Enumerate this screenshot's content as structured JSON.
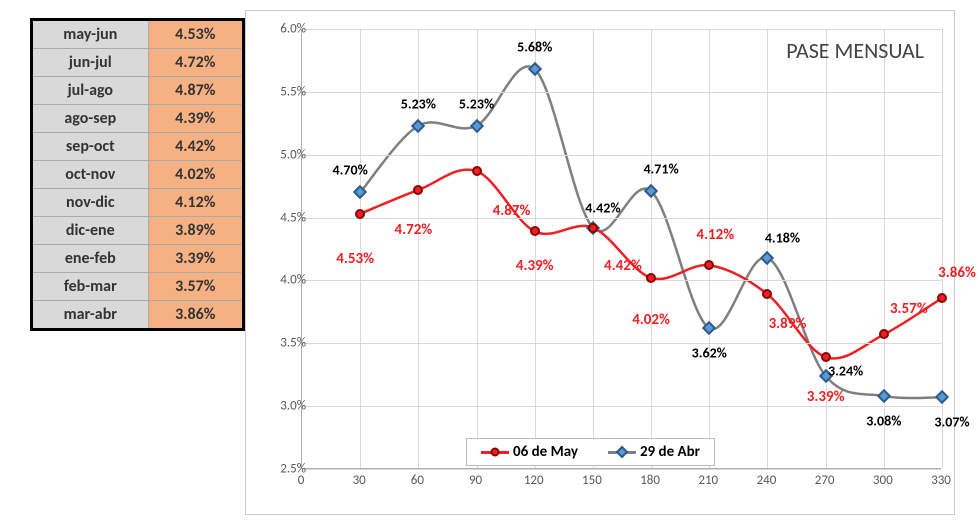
{
  "table": {
    "rows": [
      {
        "label": "may-jun",
        "value": "4.53%"
      },
      {
        "label": "jun-jul",
        "value": "4.72%"
      },
      {
        "label": "jul-ago",
        "value": "4.87%"
      },
      {
        "label": "ago-sep",
        "value": "4.39%"
      },
      {
        "label": "sep-oct",
        "value": "4.42%"
      },
      {
        "label": "oct-nov",
        "value": "4.02%"
      },
      {
        "label": "nov-dic",
        "value": "4.12%"
      },
      {
        "label": "dic-ene",
        "value": "3.89%"
      },
      {
        "label": "ene-feb",
        "value": "3.39%"
      },
      {
        "label": "feb-mar",
        "value": "3.57%"
      },
      {
        "label": "mar-abr",
        "value": "3.86%"
      }
    ],
    "label_bg": "#d9d9d9",
    "value_bg": "#f5b183"
  },
  "chart": {
    "type": "line",
    "title": "PASE MENSUAL",
    "title_fontsize": 22,
    "background_color": "#ffffff",
    "grid_color": "#d9d9d9",
    "line_width": 2.5,
    "marker_size": 10,
    "ylim": [
      2.5,
      6.0
    ],
    "ytick_step": 0.5,
    "ytick_format": "pct1",
    "xlim": [
      0,
      330
    ],
    "xtick_step": 30,
    "series": [
      {
        "name": "06 de May",
        "color": "#ed2024",
        "marker_fill": "#ed2024",
        "marker_border": "#8b0000",
        "marker": "circle",
        "x": [
          30,
          60,
          90,
          120,
          150,
          180,
          210,
          240,
          270,
          300,
          330
        ],
        "y": [
          4.53,
          4.72,
          4.87,
          4.39,
          4.42,
          4.02,
          4.12,
          3.89,
          3.39,
          3.57,
          3.86
        ],
        "labels": [
          "4.53%",
          "4.72%",
          "4.87%",
          "4.39%",
          "4.42%",
          "4.02%",
          "4.12%",
          "3.89%",
          "3.39%",
          "3.57%",
          "3.86%"
        ],
        "label_color": "#ed2024",
        "label_fontsize": 15,
        "label_pos": [
          {
            "dx": -5,
            "dy": 45
          },
          {
            "dx": -5,
            "dy": 40
          },
          {
            "dx": 35,
            "dy": 40
          },
          {
            "dx": 0,
            "dy": 35
          },
          {
            "dx": 30,
            "dy": 38
          },
          {
            "dx": 0,
            "dy": 42
          },
          {
            "dx": 6,
            "dy": -30
          },
          {
            "dx": 20,
            "dy": 30
          },
          {
            "dx": 0,
            "dy": 40
          },
          {
            "dx": 25,
            "dy": -25
          },
          {
            "dx": 15,
            "dy": -25
          }
        ]
      },
      {
        "name": "29 de Abr",
        "color": "#7f7f7f",
        "marker_fill": "#5b9bd5",
        "marker_border": "#2e5c8a",
        "marker": "diamond",
        "x": [
          30,
          60,
          90,
          120,
          150,
          180,
          210,
          240,
          270,
          300,
          330
        ],
        "y": [
          4.7,
          5.23,
          5.23,
          5.68,
          4.42,
          4.71,
          3.62,
          4.18,
          3.24,
          3.08,
          3.07
        ],
        "labels": [
          "4.70%",
          "5.23%",
          "5.23%",
          "5.68%",
          "4.42%",
          "4.71%",
          "3.62%",
          "4.18%",
          "3.24%",
          "3.08%",
          "3.07%"
        ],
        "label_color": "#000000",
        "label_fontsize": 14,
        "label_pos": [
          {
            "dx": -10,
            "dy": -22
          },
          {
            "dx": 0,
            "dy": -22
          },
          {
            "dx": 0,
            "dy": -22
          },
          {
            "dx": 0,
            "dy": -22
          },
          {
            "dx": 10,
            "dy": -20
          },
          {
            "dx": 10,
            "dy": -22
          },
          {
            "dx": 0,
            "dy": 25
          },
          {
            "dx": 15,
            "dy": -20
          },
          {
            "dx": 20,
            "dy": -5
          },
          {
            "dx": 0,
            "dy": 25
          },
          {
            "dx": 10,
            "dy": 25
          }
        ]
      }
    ],
    "legend_position": "bottom"
  }
}
